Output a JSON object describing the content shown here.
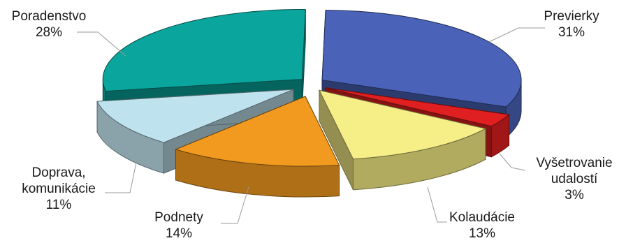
{
  "chart_data": {
    "type": "pie",
    "variant": "3d-exploded",
    "categories": [
      "Previerky",
      "Vyšetrovanie udalostí",
      "Kolaudácie",
      "Podnety",
      "Doprava, komunikácie",
      "Poradenstvo"
    ],
    "values": [
      31,
      3,
      13,
      14,
      11,
      28
    ],
    "unit": "%",
    "slices": [
      {
        "name": "Previerky",
        "value": 31,
        "color": "#4a62b8",
        "label_lines": [
          "Previerky",
          "31%"
        ]
      },
      {
        "name": "Vyšetrovanie udalostí",
        "value": 3,
        "color": "#e02020",
        "label_lines": [
          "Vyšetrovanie",
          "udalostí",
          "3%"
        ]
      },
      {
        "name": "Kolaudácie",
        "value": 13,
        "color": "#f6ee86",
        "label_lines": [
          "Kolaudácie",
          "13%"
        ]
      },
      {
        "name": "Podnety",
        "value": 14,
        "color": "#f29a1f",
        "label_lines": [
          "Podnety",
          "14%"
        ]
      },
      {
        "name": "Doprava, komunikácie",
        "value": 11,
        "color": "#bfe3ee",
        "label_lines": [
          "Doprava,",
          "komunikácie",
          "11%"
        ]
      },
      {
        "name": "Poradenstvo",
        "value": 28,
        "color": "#0aa69e",
        "label_lines": [
          "Poradenstvo",
          "28%"
        ]
      }
    ],
    "title": "",
    "legend": "none"
  }
}
